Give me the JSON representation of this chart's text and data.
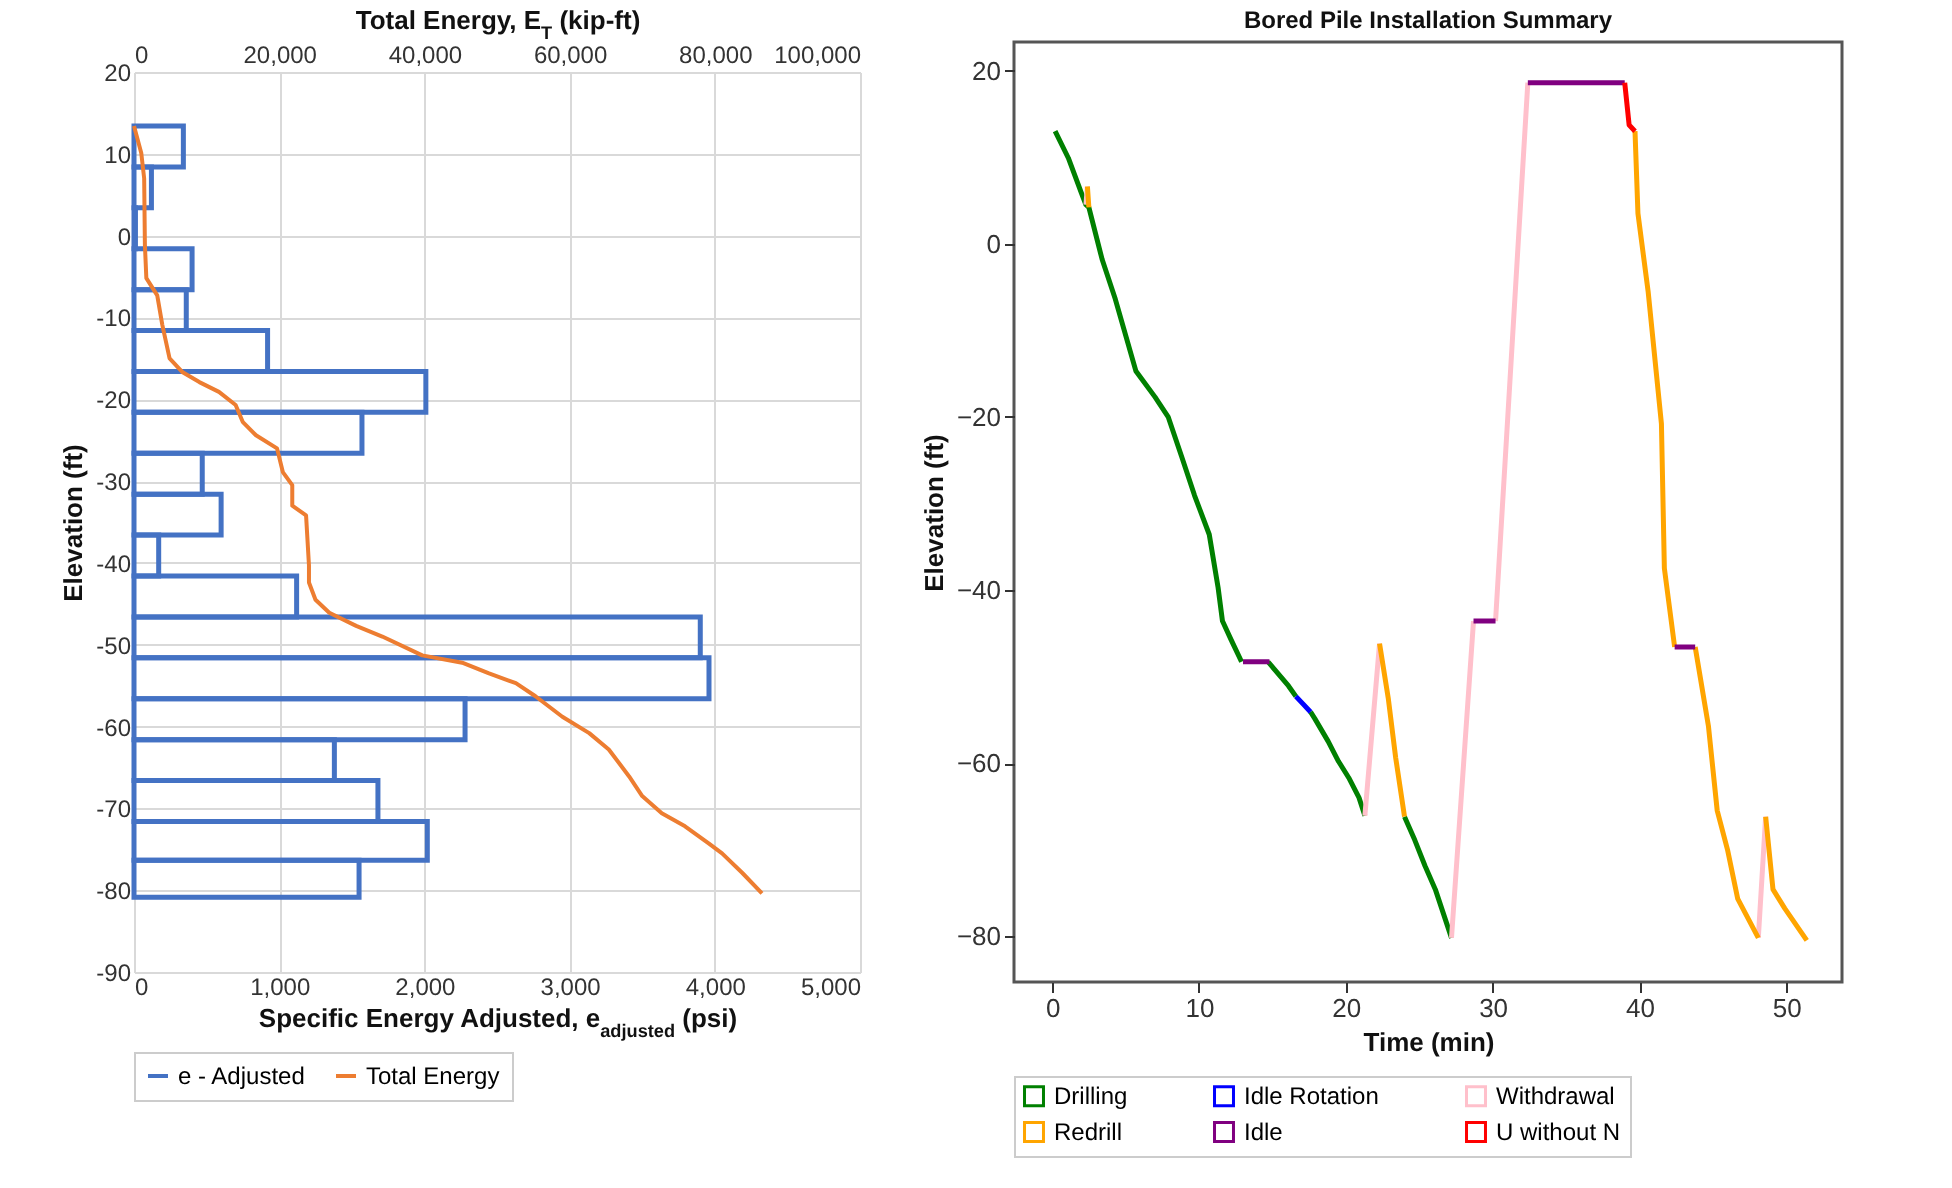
{
  "chart_data": [
    {
      "type": "bar",
      "orientation": "horizontal",
      "xlabel": "Specific Energy Adjusted, e$_{adjusted}$ (psi)",
      "ylabel": "Elevation (ft)",
      "x2label": "Total Energy, E$_{T}$ (kip-ft)",
      "x": [
        10.9,
        5.9,
        0.9,
        -4.1,
        -9.1,
        -14.1,
        -19.1,
        -24.1,
        -29.1,
        -34.1,
        -39.1,
        -44.1,
        -49.1,
        -54.1,
        -59.1,
        -64.1,
        -69.1,
        -74.1,
        -78.6
      ],
      "xlim": [
        0,
        5000
      ],
      "xticks": [
        0,
        {
          "value": 1000,
          "label": "1,000"
        },
        {
          "value": 2000,
          "label": "2,000"
        },
        {
          "value": 3000,
          "label": "3,000"
        },
        {
          "value": 4000,
          "label": "4,000"
        },
        {
          "value": 5000,
          "label": "5,000"
        }
      ],
      "x2lim": [
        0,
        100000
      ],
      "x2ticks": [
        0,
        {
          "value": 20000,
          "label": "20,000"
        },
        {
          "value": 40000,
          "label": "40,000"
        },
        {
          "value": 60000,
          "label": "60,000"
        },
        {
          "value": 80000,
          "label": "80,000"
        },
        {
          "value": 100000,
          "label": "100,000"
        }
      ],
      "ylim": [
        -90,
        20
      ],
      "yticks": [
        -90,
        -80,
        -70,
        -60,
        -50,
        -40,
        -30,
        -20,
        -10,
        0,
        10,
        20
      ],
      "grid": true,
      "legend": "bottom",
      "series": [
        {
          "name": "e - Adjusted",
          "color": "#4472c4",
          "values": [
            340,
            120,
            10,
            400,
            360,
            920,
            2010,
            1570,
            470,
            600,
            170,
            1120,
            3900,
            3960,
            2280,
            1380,
            1680,
            2020,
            1550
          ]
        },
        {
          "name": "Total Energy",
          "type": "line",
          "axis": "x2",
          "color": "#ed7d31",
          "values": [
            0,
            1000,
            1400,
            1500,
            1700,
            3200,
            3900,
            4900,
            6700,
            9000,
            11700,
            14000,
            15000,
            16800,
            19700,
            20500,
            21800,
            21800,
            23700,
            24100,
            24100,
            25000,
            26900,
            30600,
            34200,
            39700,
            45200,
            48900,
            52600,
            55300,
            59000,
            62700,
            65400,
            68200,
            70000,
            72700,
            75900,
            79200,
            81000,
            83800,
            86500
          ],
          "x": [
            13.4,
            10.1,
            7,
            -1.1,
            -5.2,
            -7.3,
            -10.9,
            -15,
            -16.7,
            -17.9,
            -19.1,
            -20.7,
            -22.8,
            -24.4,
            -26,
            -28.9,
            -30.5,
            -33,
            -34.2,
            -40.3,
            -42.4,
            -44.5,
            -46.1,
            -47.7,
            -49,
            -51.3,
            -52.2,
            -53.5,
            -54.7,
            -56.3,
            -58.8,
            -60.8,
            -62.8,
            -66.1,
            -68.5,
            -70.6,
            -72.2,
            -74.3,
            -75.5,
            -77.9,
            -80.4
          ]
        }
      ]
    },
    {
      "type": "line",
      "title": "Bored Pile Installation Summary",
      "xlabel": "Time (min)",
      "ylabel": "Elevation (ft)",
      "xlim": [
        -2.6,
        53.8
      ],
      "xticks": [
        0,
        10,
        20,
        30,
        40,
        50
      ],
      "ylim": [
        -85.3,
        23.3
      ],
      "yticks": [
        {
          "value": -80,
          "label": "−80"
        },
        {
          "value": -60,
          "label": "−60"
        },
        {
          "value": -40,
          "label": "−40"
        },
        {
          "value": -20,
          "label": "−20"
        },
        0,
        20
      ],
      "legend": "bottom",
      "series": [
        {
          "name": "Drilling",
          "color": "#008000",
          "x": [
            0.2,
            1.1,
            2.0,
            2.3,
            2.5,
            3.4,
            4.3,
            5.7,
            7.0,
            7.9,
            8.8,
            9.7,
            10.7,
            11.3,
            11.6,
            12.2,
            12.9,
            13,
            14.7,
            16.1,
            16.6,
            17.1,
            17.6,
            17.9,
            18.8,
            19.5,
            20.2,
            20.9,
            21.3,
            22,
            24.0,
            24.7,
            25.4,
            26.1,
            27.2
          ],
          "values": [
            13,
            9.9,
            5.8,
            4.5,
            4.2,
            -1.8,
            -6.4,
            -14.7,
            -17.7,
            -20,
            -24.5,
            -29.1,
            -33.6,
            -39.7,
            -43.6,
            -45.8,
            -48.3,
            null,
            -48.3,
            -51.1,
            -52.3,
            null,
            -54.1,
            -54.9,
            -57.5,
            -59.8,
            -61.7,
            -64,
            -66.1,
            null,
            -66.2,
            -68.9,
            -71.9,
            -74.6,
            -80.2
          ]
        },
        {
          "name": "Idle Rotation",
          "color": "#0000ff",
          "x": [
            16.6,
            17.1,
            17.6
          ],
          "values": [
            -52.3,
            -53.2,
            -54.1
          ]
        },
        {
          "name": "Withdrawal",
          "color": "#ffc0cb",
          "x": [
            2.3,
            2.4,
            2.45,
            21.3,
            22.3,
            24,
            27.2,
            28.7,
            29.5,
            30.2,
            32.4,
            40,
            48.1,
            48.6
          ],
          "values": [
            4.5,
            6.6,
            null,
            -66.1,
            -46.2,
            null,
            -80.2,
            -43.6,
            null,
            -43.6,
            18.6,
            null,
            -80.2,
            -66.2
          ]
        },
        {
          "name": "Redrill",
          "color": "#ffa500",
          "x": [
            2.4,
            2.5,
            10,
            22.3,
            22.9,
            23.4,
            24.0,
            30,
            39.7,
            39.9,
            40.6,
            41.5,
            41.7,
            42.4,
            43,
            43.8,
            44.7,
            45.3,
            46.0,
            46.7,
            48.1,
            48.3,
            48.6,
            49.1,
            49.9,
            51.4
          ],
          "values": [
            6.6,
            4.2,
            null,
            -46.2,
            -52.6,
            -59.4,
            -66.2,
            null,
            13,
            3.5,
            -5.6,
            -20.8,
            -37.5,
            -46.6,
            null,
            -46.6,
            -55.7,
            -65.5,
            -70,
            -75.7,
            -80.2,
            null,
            -66.2,
            -74.6,
            -76.8,
            -80.5
          ]
        },
        {
          "name": "Idle",
          "color": "#800080",
          "x": [
            13,
            14.8,
            20,
            28.7,
            30.2,
            31,
            32.4,
            39,
            40,
            42.4,
            43.8
          ],
          "values": [
            -48.3,
            -48.3,
            null,
            -43.6,
            -43.6,
            null,
            18.6,
            18.6,
            null,
            -46.6,
            -46.6
          ]
        },
        {
          "name": "U without N",
          "color": "#ff0000",
          "x": [
            39.0,
            39.3,
            39.7
          ],
          "values": [
            18.6,
            13.7,
            13
          ]
        }
      ]
    }
  ]
}
